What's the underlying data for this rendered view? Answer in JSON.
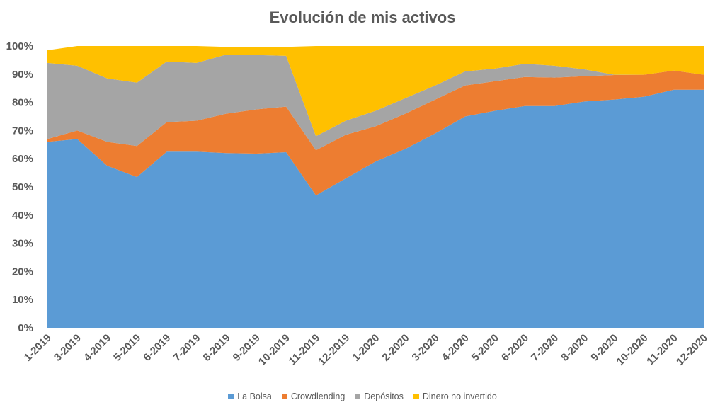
{
  "chart_data": {
    "type": "area",
    "stacked": "percent",
    "title": "Evolución de mis activos",
    "xlabel": "",
    "ylabel": "",
    "ylim": [
      0,
      100
    ],
    "yticks": [
      "0%",
      "10%",
      "20%",
      "30%",
      "40%",
      "50%",
      "60%",
      "70%",
      "80%",
      "90%",
      "100%"
    ],
    "grid": false,
    "legend": "bottom",
    "categories": [
      "1-2019",
      "3-2019",
      "4-2019",
      "5-2019",
      "6-2019",
      "7-2019",
      "8-2019",
      "9-2019",
      "10-2019",
      "11-2019",
      "12-2019",
      "1-2020",
      "2-2020",
      "3-2020",
      "4-2020",
      "5-2020",
      "6-2020",
      "7-2020",
      "8-2020",
      "9-2020",
      "10-2020",
      "11-2020",
      "12-2020"
    ],
    "series": [
      {
        "name": "La Bolsa",
        "color": "#5B9BD5",
        "values": [
          66,
          67,
          57.5,
          53.5,
          62.5,
          62.5,
          62,
          61.8,
          62.3,
          47,
          53,
          59,
          63.5,
          69,
          75,
          77,
          78.7,
          78.7,
          80.3,
          81,
          82,
          84.5,
          84.5
        ]
      },
      {
        "name": "Crowdlending",
        "color": "#ED7D31",
        "values": [
          1,
          3,
          8.5,
          11,
          10.5,
          11,
          14,
          15.7,
          16.2,
          16,
          15.5,
          12.5,
          12.5,
          12,
          11,
          10.5,
          10.3,
          10.1,
          9,
          8.7,
          7.8,
          6.8,
          5.3
        ]
      },
      {
        "name": "Depósitos",
        "color": "#A5A5A5",
        "values": [
          27,
          23,
          22.5,
          22.5,
          21.5,
          20.5,
          21,
          19.3,
          18,
          5,
          5,
          5.5,
          5.5,
          5,
          5,
          4.5,
          4.7,
          4.2,
          2.4,
          0.1,
          0,
          0,
          0
        ]
      },
      {
        "name": "Dinero no invertido",
        "color": "#FFC000",
        "values": [
          4.5,
          7,
          11.5,
          13,
          5.5,
          6,
          2.7,
          2.9,
          3.2,
          32,
          26.5,
          23,
          18.5,
          14,
          9,
          8,
          6.3,
          7,
          8.3,
          10.2,
          10.2,
          8.7,
          10.2
        ]
      }
    ]
  }
}
